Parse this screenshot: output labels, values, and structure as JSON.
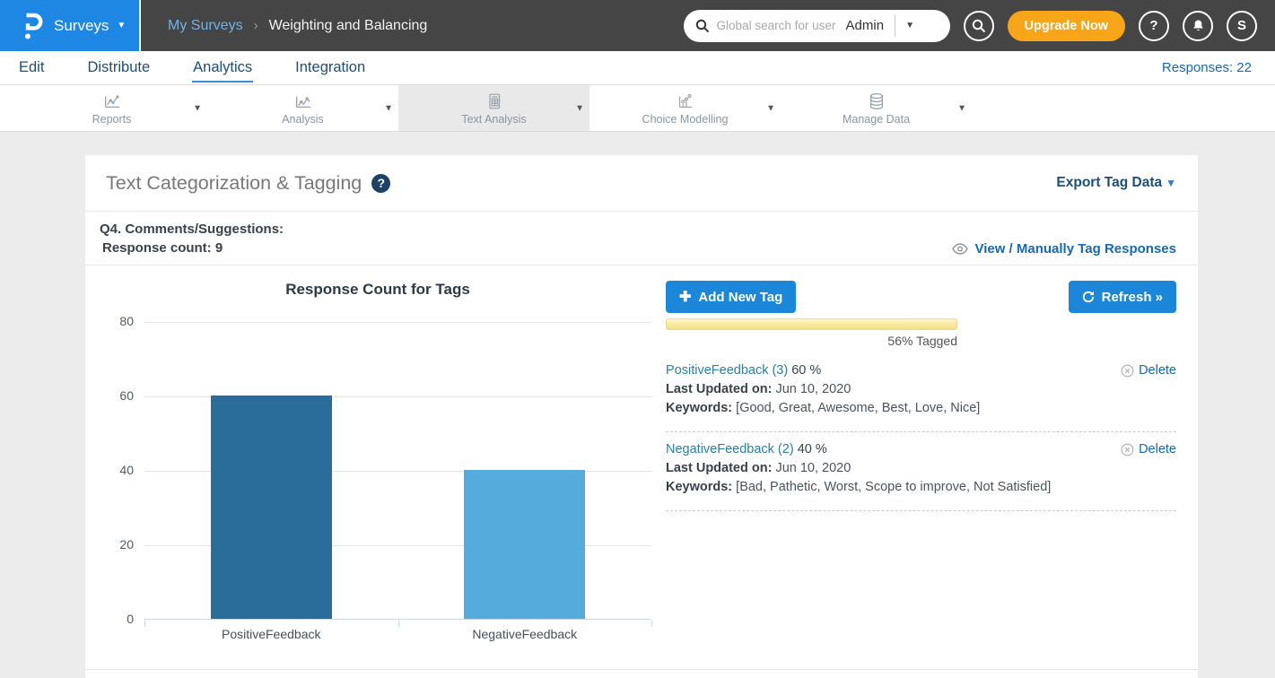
{
  "header": {
    "product": "Surveys",
    "breadcrumb": {
      "parent": "My Surveys",
      "separator": "›",
      "current": "Weighting and Balancing"
    },
    "search": {
      "placeholder": "Global search for user",
      "scope": "Admin"
    },
    "upgrade_label": "Upgrade Now",
    "help_label": "?",
    "avatar_initial": "S"
  },
  "nav": {
    "tabs": [
      {
        "label": "Edit",
        "active": false
      },
      {
        "label": "Distribute",
        "active": false
      },
      {
        "label": "Analytics",
        "active": true
      },
      {
        "label": "Integration",
        "active": false
      }
    ],
    "responses_label": "Responses: 22"
  },
  "toolbar": {
    "items": [
      {
        "label": "Reports",
        "icon": "reports-chart-icon",
        "selected": false
      },
      {
        "label": "Analysis",
        "icon": "analysis-chart-icon",
        "selected": false
      },
      {
        "label": "Text Analysis",
        "icon": "text-analysis-icon",
        "selected": true
      },
      {
        "label": "Choice Modelling",
        "icon": "choice-modelling-icon",
        "selected": false
      },
      {
        "label": "Manage Data",
        "icon": "database-icon",
        "selected": false
      }
    ]
  },
  "panel": {
    "title": "Text Categorization & Tagging",
    "export_label": "Export Tag Data",
    "question_label": "Q4. Comments/Suggestions:",
    "response_count_label": "Response count: 9",
    "view_link_label": "View / Manually Tag Responses",
    "add_tag_label": "Add New Tag",
    "refresh_label": "Refresh »",
    "progress_label": "56% Tagged",
    "tags": [
      {
        "name": "PositiveFeedback (3)",
        "percent": "60 %",
        "updated_label": "Last Updated on:",
        "updated_value": "Jun 10, 2020",
        "keywords_label": "Keywords:",
        "keywords_value": "[Good, Great, Awesome, Best, Love, Nice]",
        "delete_label": "Delete"
      },
      {
        "name": "NegativeFeedback (2)",
        "percent": "40 %",
        "updated_label": "Last Updated on:",
        "updated_value": "Jun 10, 2020",
        "keywords_label": "Keywords:",
        "keywords_value": "[Bad, Pathetic, Worst, Scope to improve, Not Satisfied]",
        "delete_label": "Delete"
      }
    ]
  },
  "chart_data": {
    "type": "bar",
    "title": "Response Count for Tags",
    "categories": [
      "PositiveFeedback",
      "NegativeFeedback"
    ],
    "values": [
      60,
      40
    ],
    "bar_colors": [
      "#2a6d9a",
      "#55abdb"
    ],
    "xlabel": "",
    "ylabel": "",
    "yticks": [
      0,
      20,
      40,
      60,
      80
    ],
    "ylim": [
      0,
      80
    ],
    "grid": true,
    "legend": false
  },
  "colors": {
    "brand_blue": "#1e87e4",
    "header_dark": "#454545",
    "accent_blue": "#1c86d9",
    "upgrade_orange": "#f9a51a",
    "link_blue": "#1669b2",
    "navy": "#1b4e79",
    "bar_dark": "#2a6d9a",
    "bar_light": "#55abdb",
    "progress_yellow": "#f3df85"
  }
}
